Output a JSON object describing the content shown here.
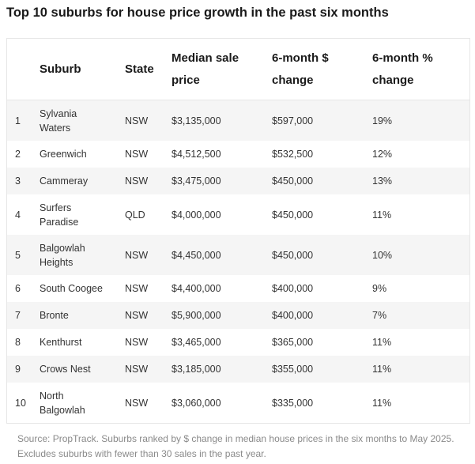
{
  "title": "Top 10 suburbs for house price growth in the past six months",
  "table": {
    "headers": [
      "",
      "Suburb",
      "State",
      "Median sale price",
      "6-month $ change",
      "6-month % change"
    ],
    "header_lines": {
      "suburb": [
        "Suburb"
      ],
      "state": [
        "State"
      ],
      "median": [
        "Median sale",
        "price"
      ],
      "dollar": [
        "6-month $",
        "change"
      ],
      "pct": [
        "6-month %",
        "change"
      ]
    },
    "rows": [
      {
        "rank": "1",
        "suburb": "Sylvania Waters",
        "state": "NSW",
        "median": "$3,135,000",
        "dollar_change": "$597,000",
        "pct_change": "19%"
      },
      {
        "rank": "2",
        "suburb": "Greenwich",
        "state": "NSW",
        "median": "$4,512,500",
        "dollar_change": "$532,500",
        "pct_change": "12%"
      },
      {
        "rank": "3",
        "suburb": "Cammeray",
        "state": "NSW",
        "median": "$3,475,000",
        "dollar_change": "$450,000",
        "pct_change": "13%"
      },
      {
        "rank": "4",
        "suburb": "Surfers Paradise",
        "state": "QLD",
        "median": "$4,000,000",
        "dollar_change": "$450,000",
        "pct_change": "11%"
      },
      {
        "rank": "5",
        "suburb": "Balgowlah Heights",
        "state": "NSW",
        "median": "$4,450,000",
        "dollar_change": "$450,000",
        "pct_change": "10%"
      },
      {
        "rank": "6",
        "suburb": "South Coogee",
        "state": "NSW",
        "median": "$4,400,000",
        "dollar_change": "$400,000",
        "pct_change": "9%"
      },
      {
        "rank": "7",
        "suburb": "Bronte",
        "state": "NSW",
        "median": "$5,900,000",
        "dollar_change": "$400,000",
        "pct_change": "7%"
      },
      {
        "rank": "8",
        "suburb": "Kenthurst",
        "state": "NSW",
        "median": "$3,465,000",
        "dollar_change": "$365,000",
        "pct_change": "11%"
      },
      {
        "rank": "9",
        "suburb": "Crows Nest",
        "state": "NSW",
        "median": "$3,185,000",
        "dollar_change": "$355,000",
        "pct_change": "11%"
      },
      {
        "rank": "10",
        "suburb": "North Balgowlah",
        "state": "NSW",
        "median": "$3,060,000",
        "dollar_change": "$335,000",
        "pct_change": "11%"
      }
    ]
  },
  "chart_data": {
    "type": "table",
    "title": "Top 10 suburbs for house price growth in the past six months",
    "columns": [
      "",
      "Suburb",
      "State",
      "Median sale price",
      "6-month $ change",
      "6-month % change"
    ],
    "rows": [
      [
        "1",
        "Sylvania Waters",
        "NSW",
        "$3,135,000",
        "$597,000",
        "19%"
      ],
      [
        "2",
        "Greenwich",
        "NSW",
        "$4,512,500",
        "$532,500",
        "12%"
      ],
      [
        "3",
        "Cammeray",
        "NSW",
        "$3,475,000",
        "$450,000",
        "13%"
      ],
      [
        "4",
        "Surfers Paradise",
        "QLD",
        "$4,000,000",
        "$450,000",
        "11%"
      ],
      [
        "5",
        "Balgowlah Heights",
        "NSW",
        "$4,450,000",
        "$450,000",
        "10%"
      ],
      [
        "6",
        "South Coogee",
        "NSW",
        "$4,400,000",
        "$400,000",
        "9%"
      ],
      [
        "7",
        "Bronte",
        "NSW",
        "$5,900,000",
        "$400,000",
        "7%"
      ],
      [
        "8",
        "Kenthurst",
        "NSW",
        "$3,465,000",
        "$365,000",
        "11%"
      ],
      [
        "9",
        "Crows Nest",
        "NSW",
        "$3,185,000",
        "$355,000",
        "11%"
      ],
      [
        "10",
        "North Balgowlah",
        "NSW",
        "$3,060,000",
        "$335,000",
        "11%"
      ]
    ]
  },
  "source": "Source: PropTrack. Suburbs ranked by $ change in median house prices in the six months to May 2025. Excludes suburbs with fewer than 30 sales in the past year."
}
